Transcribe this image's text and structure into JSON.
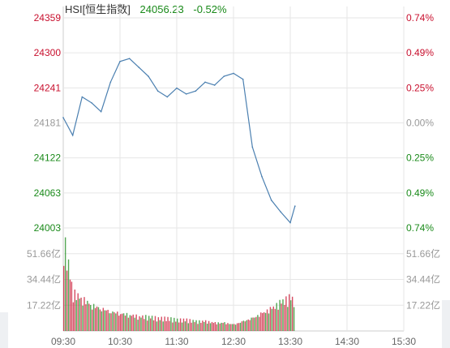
{
  "header": {
    "symbol": "HSI[恒生指数]",
    "value": "24056.23",
    "change_pct": "-0.52%"
  },
  "colors": {
    "up": "#c8102e",
    "down": "#1a8a1a",
    "neutral": "#999999",
    "line": "#4a7fb0",
    "grid": "#e6e6e6"
  },
  "chart_data": [
    {
      "type": "line",
      "title": "HSI[恒生指数]",
      "y_left_ticks": [
        "24359",
        "24300",
        "24241",
        "24181",
        "24122",
        "24063",
        "24003"
      ],
      "y_right_ticks": [
        "0.74%",
        "0.49%",
        "0.25%",
        "0.00%",
        "0.25%",
        "0.49%",
        "0.74%"
      ],
      "x_ticks": [
        "09:30",
        "10:30",
        "11:30",
        "12:30",
        "13:30",
        "14:30",
        "15:30"
      ],
      "ylim": [
        24003,
        24359
      ],
      "reference": 24181,
      "grid": true,
      "x": [
        "09:30",
        "09:40",
        "09:50",
        "10:00",
        "10:10",
        "10:20",
        "10:30",
        "10:40",
        "10:50",
        "11:00",
        "11:10",
        "11:20",
        "11:30",
        "11:40",
        "11:50",
        "12:00",
        "12:10",
        "12:20",
        "12:30",
        "12:40",
        "12:50",
        "13:00",
        "13:10",
        "13:20",
        "13:30",
        "13:35"
      ],
      "series": [
        {
          "values": [
            24190,
            24160,
            24225,
            24215,
            24200,
            24250,
            24285,
            24290,
            24275,
            24260,
            24235,
            24225,
            24240,
            24230,
            24235,
            24250,
            24245,
            24260,
            24265,
            24255,
            24140,
            24090,
            24050,
            24030,
            24012,
            24040
          ]
        }
      ]
    },
    {
      "type": "bar",
      "y_left_ticks": [
        "51.66亿",
        "34.44亿",
        "17.22亿"
      ],
      "y_right_ticks": [
        "51.66亿",
        "34.44亿",
        "17.22亿"
      ],
      "ylim": [
        0,
        68.88
      ],
      "x": [
        "09:30",
        "09:40",
        "09:50",
        "10:00",
        "10:10",
        "10:20",
        "10:30",
        "10:40",
        "10:50",
        "11:00",
        "11:10",
        "11:20",
        "11:30",
        "11:40",
        "11:50",
        "12:00",
        "12:10",
        "12:20",
        "12:30",
        "12:40",
        "12:50",
        "13:00",
        "13:10",
        "13:20",
        "13:30",
        "13:35"
      ],
      "values": [
        58,
        24,
        20,
        16,
        14,
        12,
        11,
        10,
        9,
        9,
        8,
        8,
        7,
        7,
        6,
        6,
        5,
        5,
        4,
        6,
        8,
        11,
        14,
        18,
        21,
        17
      ]
    }
  ]
}
